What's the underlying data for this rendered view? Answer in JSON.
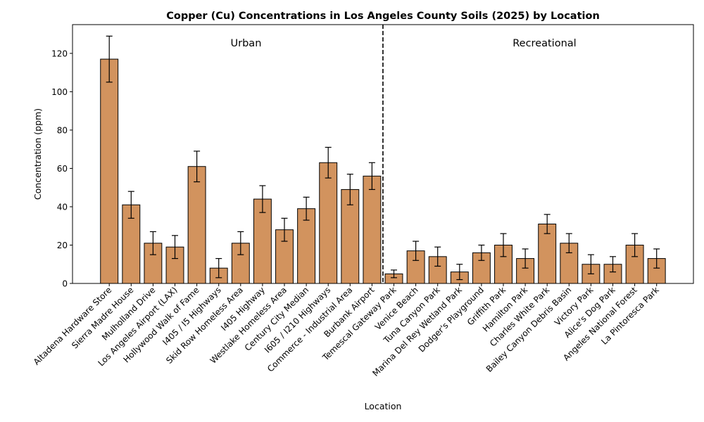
{
  "chart_data": {
    "type": "bar",
    "title": "Copper (Cu) Concentrations in Los Angeles County Soils (2025) by Location",
    "xlabel": "Location",
    "ylabel": "Concentration (ppm)",
    "ylim": [
      0,
      135
    ],
    "yticks": [
      0,
      20,
      40,
      60,
      80,
      100,
      120
    ],
    "bar_color": "#d2935e",
    "edge_color": "#000000",
    "divider_after_category": "Burbank Airport",
    "groups": [
      {
        "label": "Urban"
      },
      {
        "label": "Recreational"
      }
    ],
    "categories": [
      "Altadena Hardware Store",
      "Sierra Madre House",
      "Mulholland Drive",
      "Los Angeles Airport (LAX)",
      "Hollywood Walk of Fame",
      "I405 / I5 Highways",
      "Skid Row Homeless Area",
      "I405 Highway",
      "Westlake Homeless Area",
      "Century City Median",
      "I605 / I210 Highways",
      "Commerce - Industrial Area",
      "Burbank Airport",
      "Temescal Gateway Park",
      "Venice Beach",
      "Tuna Canyon Park",
      "Marina Del Rey Wetland Park",
      "Dodger's Playground",
      "Griffith Park",
      "Hamilton Park",
      "Charles White Park",
      "Bailey Canyon Debris Basin",
      "Victory Park",
      "Alice's Dog Park",
      "Angeles National Forest",
      "La Pintoresca Park"
    ],
    "values": [
      117,
      41,
      21,
      19,
      61,
      8,
      21,
      44,
      28,
      39,
      63,
      49,
      56,
      5,
      17,
      14,
      6,
      16,
      20,
      13,
      31,
      21,
      10,
      10,
      20,
      13
    ],
    "errors": [
      12,
      7,
      6,
      6,
      8,
      5,
      6,
      7,
      6,
      6,
      8,
      8,
      7,
      2,
      5,
      5,
      4,
      4,
      6,
      5,
      5,
      5,
      5,
      4,
      6,
      5
    ],
    "grid": false,
    "legend": "none"
  }
}
